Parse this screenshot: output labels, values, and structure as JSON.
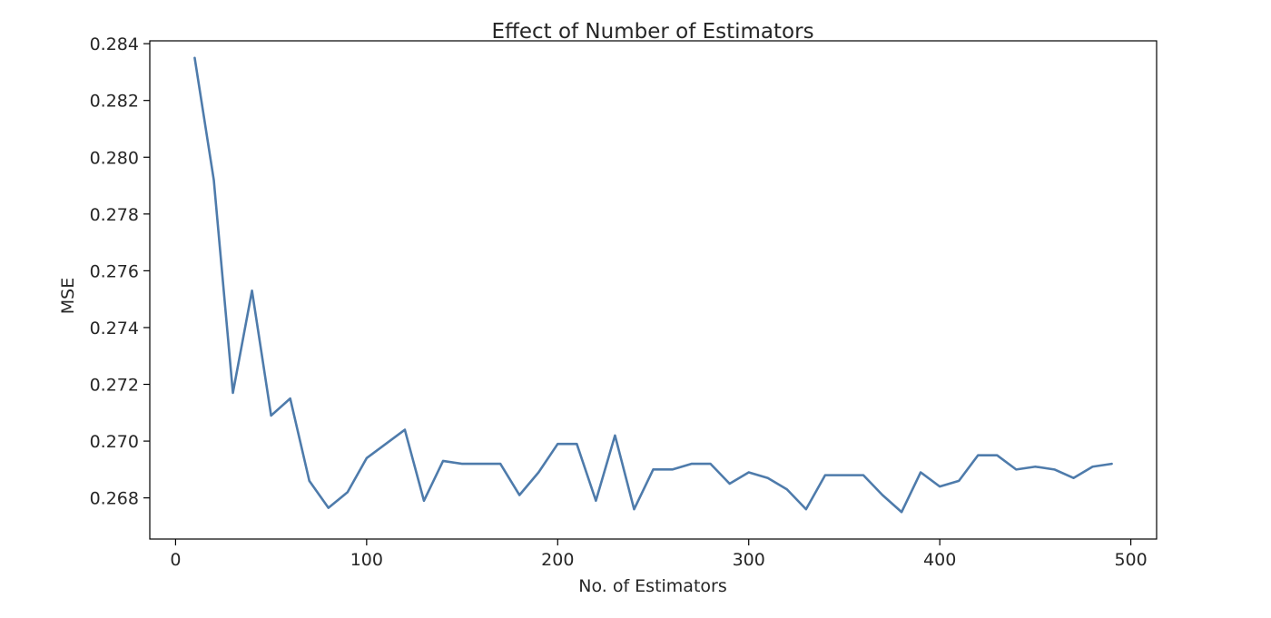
{
  "chart_data": {
    "type": "line",
    "title": "Effect of Number of Estimators",
    "xlabel": "No. of Estimators",
    "ylabel": "MSE",
    "xlim": [
      -13.5,
      513.5
    ],
    "ylim": [
      0.26655,
      0.2841
    ],
    "xticks": [
      0,
      100,
      200,
      300,
      400,
      500
    ],
    "xtick_labels": [
      "0",
      "100",
      "200",
      "300",
      "400",
      "500"
    ],
    "yticks": [
      0.268,
      0.27,
      0.272,
      0.274,
      0.276,
      0.278,
      0.28,
      0.282,
      0.284
    ],
    "ytick_labels": [
      "0.268",
      "0.270",
      "0.272",
      "0.274",
      "0.276",
      "0.278",
      "0.280",
      "0.282",
      "0.284"
    ],
    "grid": false,
    "legend": false,
    "line_color": "#4e7bab",
    "series": [
      {
        "x": [
          10,
          20,
          30,
          40,
          50,
          60,
          70,
          80,
          90,
          100,
          110,
          120,
          130,
          140,
          150,
          160,
          170,
          180,
          190,
          200,
          210,
          220,
          230,
          240,
          250,
          260,
          270,
          280,
          290,
          300,
          310,
          320,
          330,
          340,
          350,
          360,
          370,
          380,
          390,
          400,
          410,
          420,
          430,
          440,
          450,
          460,
          470,
          480,
          490
        ],
        "values": [
          0.2835,
          0.2792,
          0.2717,
          0.2753,
          0.2709,
          0.2715,
          0.2686,
          0.26765,
          0.2682,
          0.2694,
          0.2699,
          0.2704,
          0.2679,
          0.2693,
          0.2692,
          0.2692,
          0.2692,
          0.2681,
          0.2689,
          0.2699,
          0.2699,
          0.2679,
          0.2702,
          0.2676,
          0.269,
          0.269,
          0.2692,
          0.2692,
          0.2685,
          0.2689,
          0.2687,
          0.2683,
          0.2676,
          0.2688,
          0.2688,
          0.2688,
          0.2681,
          0.2675,
          0.2689,
          0.2684,
          0.2686,
          0.2695,
          0.2695,
          0.269,
          0.2691,
          0.269,
          0.2687,
          0.2691,
          0.2692
        ]
      }
    ]
  }
}
